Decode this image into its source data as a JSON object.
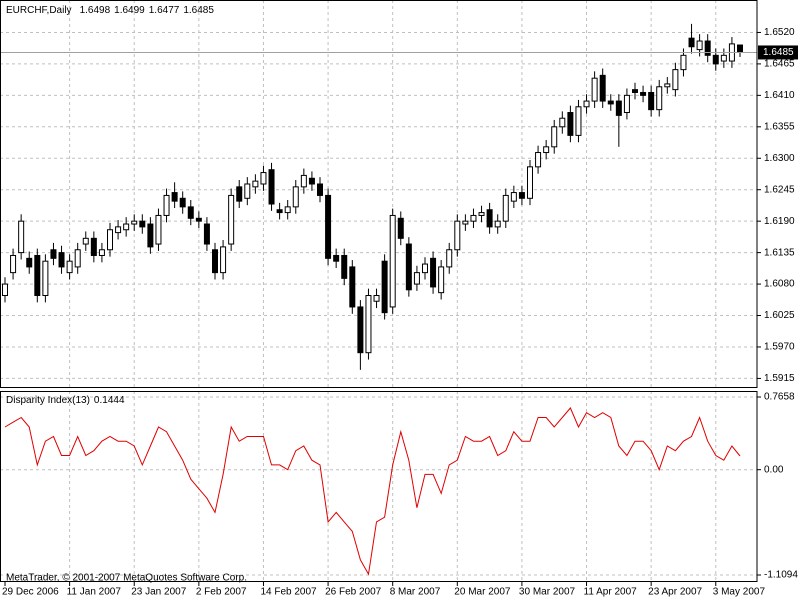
{
  "chart_data": [
    {
      "type": "candlestick",
      "title": "EURCHF,Daily",
      "categories": [
        "29 Dec 2006",
        null,
        null,
        null,
        null,
        null,
        null,
        null,
        "11 Jan 2007",
        null,
        null,
        null,
        null,
        null,
        null,
        null,
        "23 Jan 2007",
        null,
        null,
        null,
        null,
        null,
        null,
        null,
        "2 Feb 2007",
        null,
        null,
        null,
        null,
        null,
        null,
        null,
        "14 Feb 2007",
        null,
        null,
        null,
        null,
        null,
        null,
        null,
        "26 Feb 2007",
        null,
        null,
        null,
        null,
        null,
        null,
        null,
        "8 Mar 2007",
        null,
        null,
        null,
        null,
        null,
        null,
        null,
        "20 Mar 2007",
        null,
        null,
        null,
        null,
        null,
        null,
        null,
        "30 Mar 2007",
        null,
        null,
        null,
        null,
        null,
        null,
        null,
        "11 Apr 2007",
        null,
        null,
        null,
        null,
        null,
        null,
        null,
        "23 Apr 2007",
        null,
        null,
        null,
        null,
        null,
        null,
        null,
        "3 May 2007",
        null,
        null,
        null
      ],
      "open": [
        1.606,
        1.61,
        1.6135,
        1.6125,
        1.613,
        1.606,
        1.614,
        1.6135,
        1.61,
        1.611,
        1.615,
        1.616,
        1.613,
        1.614,
        1.617,
        1.6175,
        1.6185,
        1.619,
        1.6185,
        1.615,
        1.62,
        1.624,
        1.623,
        1.6215,
        1.6195,
        1.6185,
        1.614,
        1.61,
        1.615,
        1.625,
        1.623,
        1.625,
        1.6255,
        1.628,
        1.621,
        1.6205,
        1.6215,
        1.625,
        1.6265,
        1.6255,
        1.6235,
        1.613,
        1.613,
        1.611,
        1.604,
        1.596,
        1.605,
        1.612,
        1.604,
        1.6195,
        1.615,
        1.608,
        1.61,
        1.6125,
        1.6065,
        1.611,
        1.614,
        1.6185,
        1.619,
        1.62,
        1.621,
        1.618,
        1.619,
        1.6225,
        1.624,
        1.623,
        1.6285,
        1.631,
        1.632,
        1.6355,
        1.638,
        1.634,
        1.639,
        1.64,
        1.6445,
        1.64,
        1.64,
        1.638,
        1.642,
        1.6415,
        1.6415,
        1.6385,
        1.6425,
        1.642,
        1.6455,
        1.651,
        1.649,
        1.6505,
        1.648,
        1.647,
        1.647,
        1.6498
      ],
      "high": [
        1.6092,
        1.6142,
        1.6202,
        1.6137,
        1.6142,
        1.6132,
        1.6152,
        1.6147,
        1.6132,
        1.6152,
        1.6172,
        1.6172,
        1.6152,
        1.6187,
        1.6192,
        1.6197,
        1.6202,
        1.6202,
        1.6197,
        1.6212,
        1.6247,
        1.6258,
        1.6242,
        1.6227,
        1.6207,
        1.6197,
        1.6152,
        1.6157,
        1.6247,
        1.6262,
        1.6267,
        1.6272,
        1.6287,
        1.6292,
        1.6222,
        1.6227,
        1.6262,
        1.6282,
        1.6277,
        1.6267,
        1.6247,
        1.6142,
        1.6142,
        1.6122,
        1.6052,
        1.6072,
        1.6072,
        1.6132,
        1.6212,
        1.6207,
        1.6162,
        1.6112,
        1.6127,
        1.6137,
        1.6122,
        1.6152,
        1.6202,
        1.6202,
        1.6212,
        1.6217,
        1.6222,
        1.6202,
        1.6247,
        1.6252,
        1.6252,
        1.6297,
        1.6322,
        1.6332,
        1.6367,
        1.6382,
        1.6392,
        1.6402,
        1.6412,
        1.6452,
        1.6457,
        1.6412,
        1.6412,
        1.6422,
        1.6432,
        1.6427,
        1.6427,
        1.6437,
        1.6442,
        1.6467,
        1.6492,
        1.6535,
        1.6517,
        1.6517,
        1.6492,
        1.6492,
        1.6512,
        1.6499
      ],
      "low": [
        1.6048,
        1.6088,
        1.6123,
        1.6098,
        1.6048,
        1.6048,
        1.6113,
        1.6098,
        1.6088,
        1.6098,
        1.6138,
        1.6118,
        1.6118,
        1.6128,
        1.6158,
        1.6163,
        1.6173,
        1.6168,
        1.6133,
        1.6138,
        1.6188,
        1.6213,
        1.6203,
        1.6183,
        1.6178,
        1.6138,
        1.6088,
        1.6088,
        1.6138,
        1.6213,
        1.6218,
        1.6238,
        1.6243,
        1.6208,
        1.6193,
        1.6193,
        1.6203,
        1.6238,
        1.6243,
        1.6223,
        1.6113,
        1.6108,
        1.6078,
        1.6028,
        1.593,
        1.5948,
        1.6038,
        1.6018,
        1.6028,
        1.6148,
        1.6058,
        1.6068,
        1.6088,
        1.6063,
        1.6053,
        1.6098,
        1.6128,
        1.6173,
        1.6178,
        1.6188,
        1.6168,
        1.6168,
        1.6178,
        1.6213,
        1.6218,
        1.6218,
        1.6273,
        1.6298,
        1.6308,
        1.6343,
        1.6328,
        1.6328,
        1.6378,
        1.6388,
        1.6388,
        1.6383,
        1.632,
        1.6368,
        1.6403,
        1.6398,
        1.6373,
        1.6373,
        1.6413,
        1.6408,
        1.6443,
        1.6483,
        1.6478,
        1.6468,
        1.6453,
        1.6458,
        1.6458,
        1.6477
      ],
      "close": [
        1.608,
        1.613,
        1.619,
        1.611,
        1.606,
        1.612,
        1.6125,
        1.611,
        1.612,
        1.614,
        1.616,
        1.613,
        1.614,
        1.6175,
        1.618,
        1.6185,
        1.619,
        1.618,
        1.6145,
        1.62,
        1.6235,
        1.6225,
        1.6215,
        1.6195,
        1.619,
        1.615,
        1.61,
        1.6145,
        1.6235,
        1.6225,
        1.6255,
        1.626,
        1.6275,
        1.622,
        1.6205,
        1.6215,
        1.625,
        1.627,
        1.6255,
        1.6235,
        1.6125,
        1.612,
        1.609,
        1.604,
        1.596,
        1.606,
        1.606,
        1.603,
        1.62,
        1.616,
        1.607,
        1.61,
        1.6115,
        1.6075,
        1.611,
        1.614,
        1.619,
        1.619,
        1.62,
        1.6205,
        1.618,
        1.619,
        1.6235,
        1.624,
        1.623,
        1.6285,
        1.631,
        1.632,
        1.6355,
        1.637,
        1.634,
        1.639,
        1.64,
        1.644,
        1.64,
        1.6395,
        1.6375,
        1.641,
        1.6415,
        1.641,
        1.6385,
        1.6425,
        1.643,
        1.6455,
        1.648,
        1.6495,
        1.6505,
        1.648,
        1.6465,
        1.648,
        1.65,
        1.6485
      ],
      "ylim": [
        1.59,
        1.6575
      ],
      "yticks": [
        {
          "value": 1.652,
          "label": "1.6520"
        },
        1.6465,
        {
          "value": 1.641,
          "label": "1.6410"
        },
        1.6355,
        {
          "value": 1.63,
          "label": "1.6300"
        },
        1.6245,
        {
          "value": 1.619,
          "label": "1.6190"
        },
        1.6135,
        {
          "value": 1.608,
          "label": "1.6080"
        },
        1.6025,
        {
          "value": 1.597,
          "label": "1.5970"
        },
        1.5915
      ],
      "grid": true,
      "up_color": "#ffffff",
      "down_color": "#000000"
    },
    {
      "type": "line",
      "title": "Disparity Index(13)",
      "color": "#e00000",
      "values": [
        0.45,
        0.5,
        0.55,
        0.45,
        0.05,
        0.3,
        0.35,
        0.15,
        0.15,
        0.35,
        0.15,
        0.2,
        0.3,
        0.35,
        0.3,
        0.3,
        0.25,
        0.05,
        0.25,
        0.45,
        0.4,
        0.25,
        0.1,
        -0.1,
        -0.2,
        -0.3,
        -0.45,
        -0.05,
        0.45,
        0.3,
        0.35,
        0.35,
        0.35,
        0.05,
        0.05,
        0.0,
        0.2,
        0.25,
        0.1,
        0.05,
        -0.55,
        -0.45,
        -0.55,
        -0.65,
        -0.95,
        -1.1,
        -0.55,
        -0.5,
        0.05,
        0.4,
        0.1,
        -0.4,
        -0.05,
        -0.05,
        -0.25,
        0.05,
        0.1,
        0.35,
        0.3,
        0.3,
        0.35,
        0.15,
        0.2,
        0.4,
        0.3,
        0.3,
        0.55,
        0.55,
        0.45,
        0.55,
        0.65,
        0.45,
        0.6,
        0.55,
        0.6,
        0.55,
        0.25,
        0.15,
        0.3,
        0.3,
        0.2,
        0.0,
        0.25,
        0.2,
        0.3,
        0.35,
        0.55,
        0.3,
        0.15,
        0.1,
        0.25,
        0.1444
      ],
      "ylim": [
        -1.1094,
        0.7658
      ],
      "yticks": [
        0.7658,
        {
          "value": 0,
          "label": "0.00"
        },
        -1.1094
      ],
      "grid": true
    }
  ],
  "footer": "MetaTrader, © 2001-2007 MetaQuotes Software Corp."
}
